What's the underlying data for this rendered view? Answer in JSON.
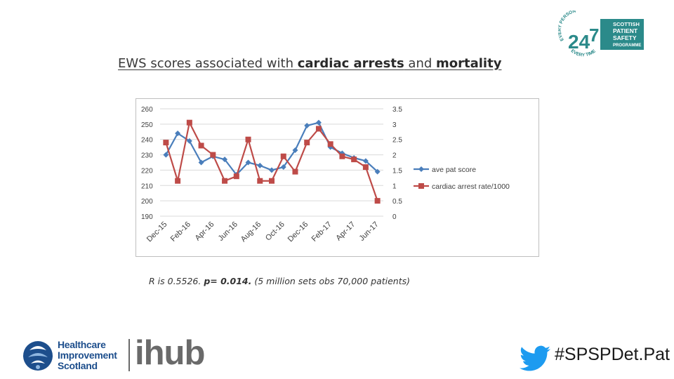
{
  "slide": {
    "title_pre": "EWS scores associated with ",
    "title_bold1": "cardiac arrests",
    "title_mid": " and ",
    "title_bold2": "mortality",
    "caption_pre": "R is 0.5526. ",
    "caption_bold": "p= 0.014.",
    "caption_post": " (5 million sets obs 70,000 patients)",
    "hashtag": "#SPSPDet.Pat"
  },
  "logos": {
    "spsp": {
      "top_text": "EVERY PERSON",
      "bottom_text": "EVERY TIME",
      "l1": "SCOTTISH",
      "l2": "PATIENT",
      "l3": "SAFETY",
      "l4": "PROGRAMME",
      "num_left": "24",
      "num_right": "7",
      "color": "#2b8a8a"
    },
    "hc": {
      "l1": "Healthcare",
      "l2": "Improvement",
      "l3": "Scotland",
      "ihub": "ihub",
      "color": "#1d4e8c"
    }
  },
  "chart_data": {
    "type": "line",
    "title": "",
    "categories": [
      "Dec-15",
      "Jan-16",
      "Feb-16",
      "Mar-16",
      "Apr-16",
      "May-16",
      "Jun-16",
      "Jul-16",
      "Aug-16",
      "Sep-16",
      "Oct-16",
      "Nov-16",
      "Dec-16",
      "Jan-17",
      "Feb-17",
      "Mar-17",
      "Apr-17",
      "May-17",
      "Jun-17"
    ],
    "x_tick_labels": [
      "Dec-15",
      "Feb-16",
      "Apr-16",
      "Jun-16",
      "Aug-16",
      "Oct-16",
      "Dec-16",
      "Feb-17",
      "Apr-17",
      "Jun-17"
    ],
    "y_left": {
      "min": 190,
      "max": 260,
      "ticks": [
        "260",
        "250",
        "240",
        "230",
        "220",
        "210",
        "200",
        "190"
      ]
    },
    "y_right": {
      "min": 0,
      "max": 3.5,
      "ticks": [
        "3.5",
        "3",
        "2.5",
        "2",
        "1.5",
        "1",
        "0.5",
        "0"
      ]
    },
    "series": [
      {
        "name": "ave pat score",
        "axis": "left",
        "color": "#4a7ebb",
        "marker": "diamond",
        "values": [
          230,
          244,
          239,
          225,
          229,
          227,
          217,
          225,
          223,
          220,
          222,
          233,
          249,
          251,
          235,
          231,
          228,
          226,
          219
        ]
      },
      {
        "name": "cardiac arrest rate/1000",
        "axis": "right",
        "color": "#be4b48",
        "marker": "square",
        "values": [
          2.4,
          1.15,
          3.05,
          2.3,
          2.0,
          1.15,
          1.3,
          2.5,
          1.15,
          1.15,
          1.95,
          1.45,
          2.4,
          2.85,
          2.35,
          1.95,
          1.85,
          1.6,
          0.5
        ]
      }
    ],
    "legend_position": "right"
  }
}
